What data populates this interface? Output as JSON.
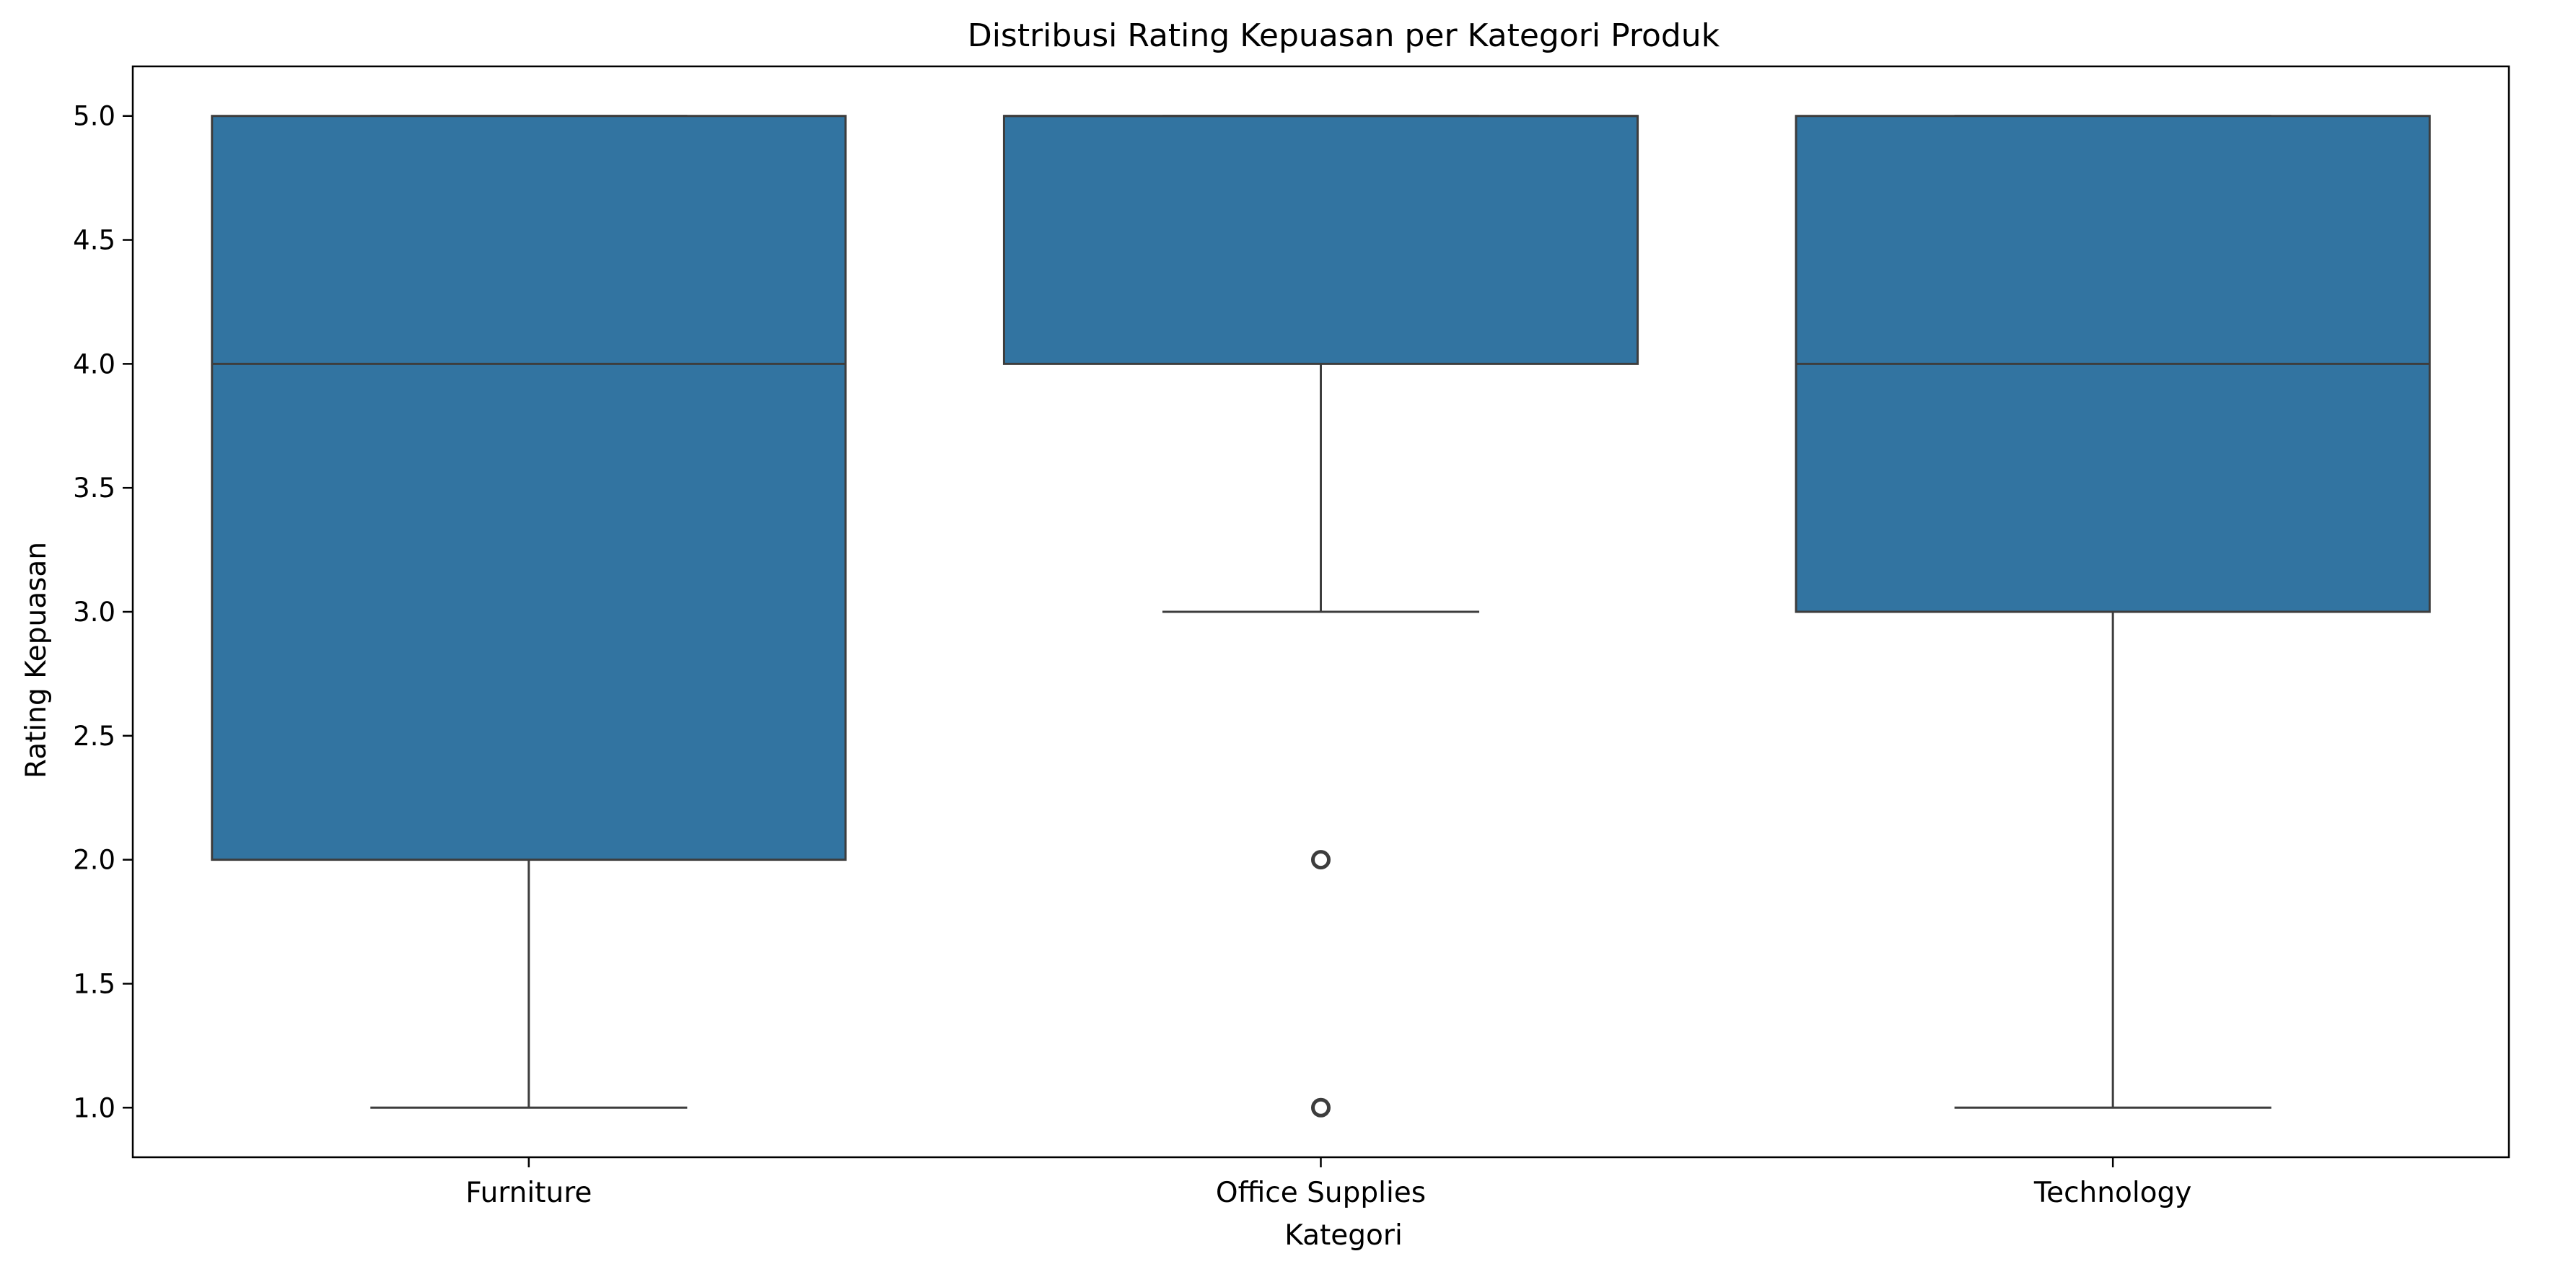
{
  "chart_data": {
    "type": "box",
    "title": "Distribusi Rating Kepuasan per Kategori Produk",
    "xlabel": "Kategori",
    "ylabel": "Rating Kepuasan",
    "ylim": [
      0.8,
      5.2
    ],
    "yticks": [
      "1.0",
      "1.5",
      "2.0",
      "2.5",
      "3.0",
      "3.5",
      "4.0",
      "4.5",
      "5.0"
    ],
    "categories": [
      "Furniture",
      "Office Supplies",
      "Technology"
    ],
    "boxes": [
      {
        "category": "Furniture",
        "whisker_low": 1.0,
        "q1": 2.0,
        "median": 4.0,
        "q3": 5.0,
        "whisker_high": 5.0,
        "outliers": []
      },
      {
        "category": "Office Supplies",
        "whisker_low": 3.0,
        "q1": 4.0,
        "median": 5.0,
        "q3": 5.0,
        "whisker_high": 5.0,
        "outliers": [
          1.0,
          2.0
        ]
      },
      {
        "category": "Technology",
        "whisker_low": 1.0,
        "q1": 3.0,
        "median": 4.0,
        "q3": 5.0,
        "whisker_high": 5.0,
        "outliers": []
      }
    ],
    "grid": false,
    "colors": {
      "box_fill": "#3274a1",
      "line": "#3d3d3d"
    }
  }
}
